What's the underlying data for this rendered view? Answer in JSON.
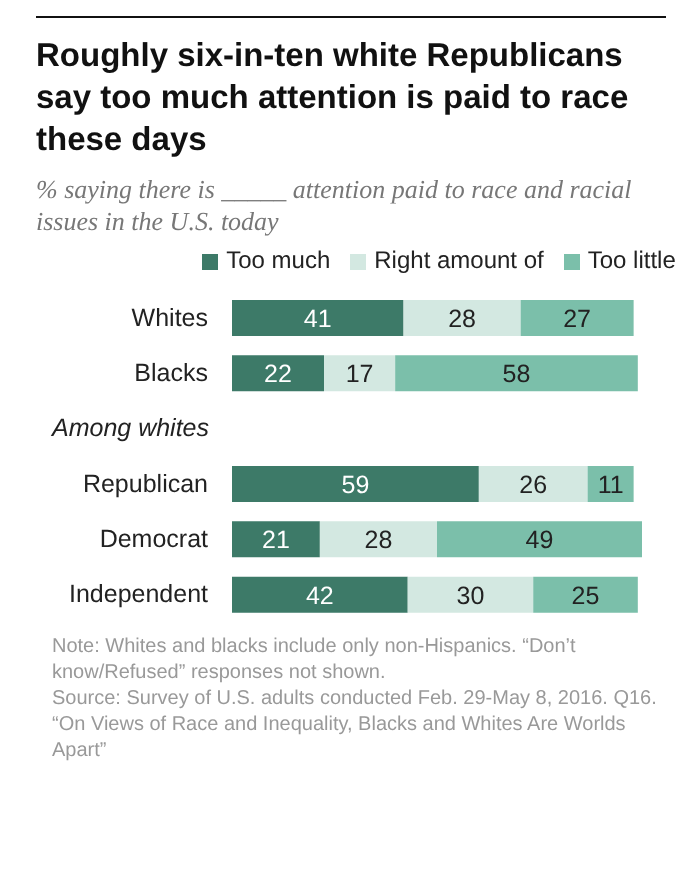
{
  "chart_data": {
    "type": "bar",
    "orientation": "horizontal",
    "stacked": true,
    "title": "Roughly six-in-ten white Republicans say too much attention is paid to race these days",
    "subtitle": "% saying there is _____ attention paid to race and racial issues in the U.S. today",
    "categories": [
      "Whites",
      "Blacks",
      "Among whites",
      "Republican",
      "Democrat",
      "Independent"
    ],
    "series": [
      {
        "name": "Too much",
        "color": "#3d7a68",
        "values": [
          41,
          22,
          null,
          59,
          21,
          42
        ]
      },
      {
        "name": "Right amount of",
        "color": "#d3e8e1",
        "values": [
          28,
          17,
          null,
          26,
          28,
          30
        ]
      },
      {
        "name": "Too little",
        "color": "#7bbfaa",
        "values": [
          27,
          58,
          null,
          11,
          49,
          25
        ]
      }
    ],
    "data_labels": true,
    "legend": "top",
    "grid": false,
    "tick_labels": "y",
    "annotations": [
      "Note: Whites and blacks include only non-Hispanics. “Don’t know/Refused” responses not shown.",
      "Source: Survey of U.S. adults conducted Feb. 29-May 8, 2016. Q16.",
      "“On Views of Race and Inequality, Blacks and Whites Are Worlds Apart”"
    ]
  }
}
